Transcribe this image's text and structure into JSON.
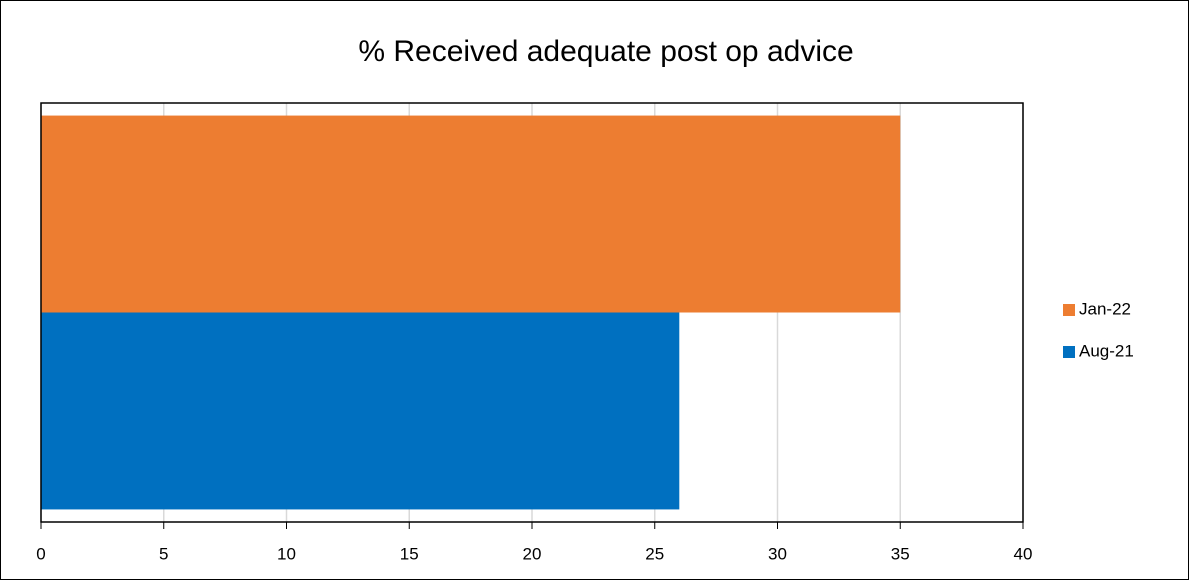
{
  "chart_data": {
    "type": "barh",
    "title": "% Received adequate post op advice",
    "categories": [
      null
    ],
    "series": [
      {
        "name": "Jan-22",
        "color": "#ed7d31",
        "values": [
          35
        ]
      },
      {
        "name": "Aug-21",
        "color": "#0070c0",
        "values": [
          26
        ]
      }
    ],
    "xlim": [
      0,
      40
    ],
    "xticks": [
      0,
      5,
      10,
      15,
      20,
      25,
      30,
      35,
      40
    ],
    "grid": true,
    "legend": "right"
  }
}
